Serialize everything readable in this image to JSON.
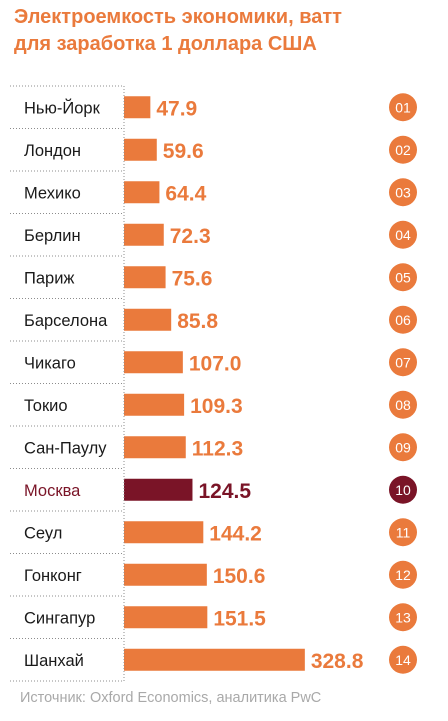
{
  "title_line1": "Электроемкость экономики, ватт",
  "title_line2": "для заработка 1 доллара США",
  "source": "Источник: Oxford Economics, аналитика PwC",
  "colors": {
    "accent": "#ea7a3c",
    "highlight": "#7a1427",
    "label_text": "#1a1a1a",
    "separator": "#8c8c8c",
    "source_text": "#a9a9a9"
  },
  "chart_data": {
    "type": "bar",
    "orientation": "horizontal",
    "title": "Электроемкость экономики, ватт для заработка 1 доллара США",
    "categories": [
      "Нью-Йорк",
      "Лондон",
      "Мехико",
      "Берлин",
      "Париж",
      "Барселона",
      "Чикаго",
      "Токио",
      "Сан-Паулу",
      "Москва",
      "Сеул",
      "Гонконг",
      "Сингапур",
      "Шанхай"
    ],
    "values": [
      47.9,
      59.6,
      64.4,
      72.3,
      75.6,
      85.8,
      107.0,
      109.3,
      112.3,
      124.5,
      144.2,
      150.6,
      151.5,
      328.8
    ],
    "value_labels": [
      "47.9",
      "59.6",
      "64.4",
      "72.3",
      "75.6",
      "85.8",
      "107.0",
      "109.3",
      "112.3",
      "124.5",
      "144.2",
      "150.6",
      "151.5",
      "328.8"
    ],
    "ranks": [
      "01",
      "02",
      "03",
      "04",
      "05",
      "06",
      "07",
      "08",
      "09",
      "10",
      "11",
      "12",
      "13",
      "14"
    ],
    "highlight": "Москва",
    "grid": false,
    "legend": "none"
  }
}
